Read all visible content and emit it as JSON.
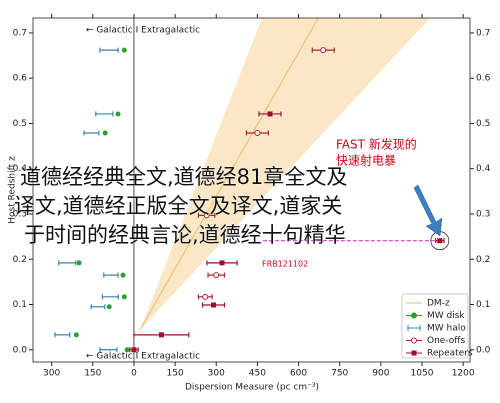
{
  "chart_data": {
    "type": "scatter",
    "xlabel": "Dispersion Measure (pc cm⁻³)",
    "ylabel": "Host Redshift z",
    "xlim": [
      -368,
      1225
    ],
    "ylim": [
      -0.027,
      0.733
    ],
    "xticks": [
      {
        "value": -300,
        "label": "300"
      },
      {
        "value": -150,
        "label": "150"
      },
      0,
      150,
      300,
      450,
      600,
      750,
      900,
      1050,
      1200
    ],
    "yticks": [
      {
        "value": 0,
        "label": "0.0"
      },
      {
        "value": 0.1,
        "label": "0.1"
      },
      {
        "value": 0.2,
        "label": "0.2"
      },
      {
        "value": 0.3,
        "label": "0.3"
      },
      {
        "value": 0.4,
        "label": "0.4"
      },
      {
        "value": 0.5,
        "label": "0.5"
      },
      {
        "value": 0.6,
        "label": "0.6"
      },
      {
        "value": 0.7,
        "label": "0.7"
      }
    ],
    "dmz": {
      "name": "DM-z",
      "color": "#e8b96a",
      "band_color": "#fbe7c6",
      "x": [
        22,
        672
      ],
      "y": [
        0.044,
        0.733
      ],
      "band_low": [
        22,
        467
      ],
      "band_high": [
        22,
        1080
      ]
    },
    "series": [
      {
        "name": "MW disk",
        "color": "#2ca02c",
        "marker": "dot",
        "x": [
          -35,
          -58,
          -105,
          -200,
          -40,
          -35,
          -90,
          -210,
          -25
        ],
        "y": [
          0.662,
          0.521,
          0.479,
          0.192,
          0.165,
          0.117,
          0.095,
          0.033,
          0.0
        ]
      },
      {
        "name": "MW halo",
        "color": "#3d7fb0",
        "marker": "bar",
        "x": [
          -91,
          -108,
          -155,
          -243,
          -84,
          -86,
          -131,
          -261,
          -93
        ],
        "xerr": [
          33,
          31,
          27,
          31,
          26,
          29,
          25,
          27,
          31
        ],
        "y": [
          0.662,
          0.521,
          0.479,
          0.192,
          0.165,
          0.117,
          0.095,
          0.033,
          0.0
        ]
      },
      {
        "name": "One-offs",
        "color": "#b22233",
        "marker": "circle",
        "x": [
          690,
          450,
          265,
          300,
          260
        ],
        "xerr": [
          40,
          40,
          30,
          30,
          25
        ],
        "y": [
          0.662,
          0.479,
          0.297,
          0.165,
          0.117
        ]
      },
      {
        "name": "Repeaters",
        "color": "#9b1030",
        "marker": "square",
        "x": [
          496,
          321,
          290,
          100,
          0,
          1115
        ],
        "xerr": [
          40,
          55,
          40,
          100,
          15,
          15
        ],
        "y": [
          0.521,
          0.192,
          0.099,
          0.033,
          0.0,
          0.241
        ]
      }
    ],
    "annotations": {
      "galactic_top": "← Galactic I Extragalactic",
      "galactic_bottom": "← Galactic I Extragalactic",
      "fast": [
        "FAST 新发现的",
        "快速射电暴"
      ],
      "frb121102": "FRB121102"
    },
    "excess_line": {
      "x": [
        470,
        1115
      ],
      "y": 0.241,
      "color": "#d63fd0"
    },
    "overlay_text": [
      "道德经经典全文,道德经81章全文及",
      "译文,道德经正版全文及译文,道家关",
      "于时间的经典言论,道德经十句精华"
    ]
  }
}
